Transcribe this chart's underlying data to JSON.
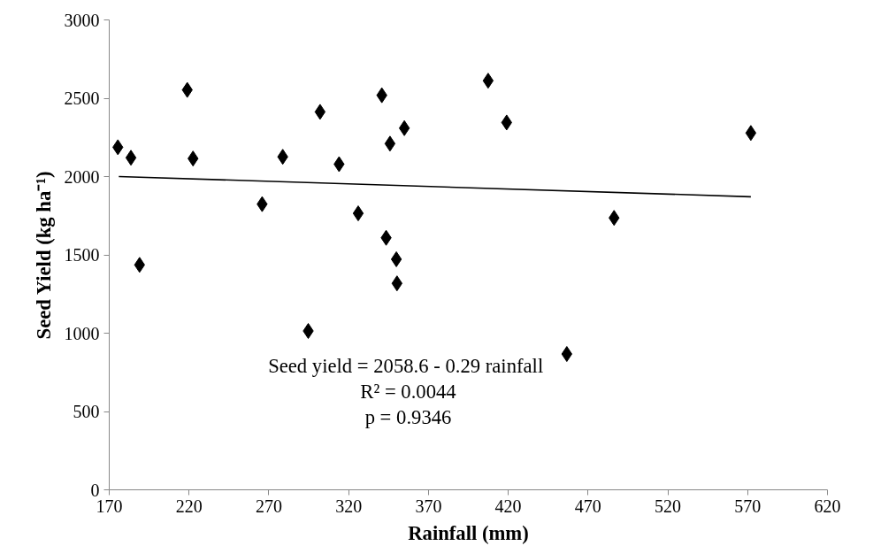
{
  "chart_data": {
    "type": "scatter",
    "xlabel": "Rainfall (mm)",
    "ylabel": "Seed Yield (kg ha⁻¹)",
    "xlim": [
      170,
      620
    ],
    "xticks": [
      170,
      220,
      270,
      320,
      370,
      420,
      470,
      520,
      570,
      620
    ],
    "ylim": [
      0,
      3000
    ],
    "yticks": [
      0,
      500,
      1000,
      1500,
      2000,
      2500,
      3000
    ],
    "grid": false,
    "marker": "diamond",
    "annotations": [
      "Seed yield =  2058.6 - 0.29 rainfall",
      "R² = 0.0044",
      "p = 0.9346"
    ],
    "series": [
      {
        "color": "#000000",
        "x": [
          175.4,
          183.6,
          189.0,
          218.9,
          222.5,
          265.8,
          278.7,
          294.7,
          302.1,
          314.0,
          326.0,
          340.8,
          343.5,
          345.9,
          349.9,
          350.3,
          354.9,
          407.4,
          419.0,
          456.7,
          486.3,
          572.0
        ],
        "values": [
          2187,
          2120,
          1436,
          2553,
          2115,
          1824,
          2126,
          1014,
          2413,
          2079,
          1765,
          2519,
          1609,
          2210,
          1472,
          1318,
          2309,
          2612,
          2345,
          867,
          1736,
          2278
        ]
      },
      {
        "type": "line",
        "color": "#000000",
        "line_style": "solid",
        "marker": "none",
        "x": [
          176,
          572
        ],
        "values": [
          2000,
          1871
        ]
      }
    ]
  }
}
